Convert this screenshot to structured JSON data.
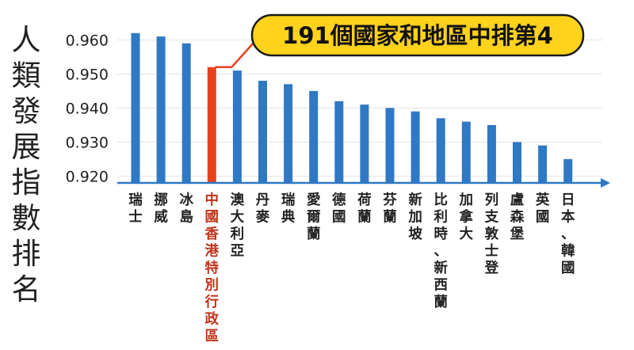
{
  "chart_data": {
    "type": "bar",
    "title": "",
    "ylabel": "人類發展指數排名",
    "xlabel": "",
    "ylim": [
      0.918,
      0.968
    ],
    "yticks": [
      "0.960",
      "0.950",
      "0.940",
      "0.930",
      "0.920"
    ],
    "ytick_values": [
      0.96,
      0.95,
      0.94,
      0.93,
      0.92
    ],
    "grid": true,
    "categories": [
      "瑞士",
      "挪威",
      "冰島",
      "中國香港特別行政區",
      "澳大利亞",
      "丹麥",
      "瑞典",
      "愛爾蘭",
      "德國",
      "荷蘭",
      "芬蘭",
      "新加坡",
      "比利時、新西蘭",
      "加拿大",
      "列支敦士登",
      "盧森堡",
      "英國",
      "日本、韓國"
    ],
    "values": [
      0.962,
      0.961,
      0.959,
      0.952,
      0.951,
      0.948,
      0.947,
      0.945,
      0.942,
      0.941,
      0.94,
      0.939,
      0.937,
      0.936,
      0.935,
      0.93,
      0.929,
      0.925
    ],
    "highlight_index": 3,
    "annotation": "191個國家和地區中排第4",
    "colors": {
      "bar": "#2f78c4",
      "highlight": "#e8401c",
      "highlight_text": "#c0331a",
      "callout_fill": "#ffd21c",
      "callout_border": "#1a1a1a",
      "axis": "#2f78c4",
      "grid": "#e2e2e2",
      "text": "#222222"
    }
  }
}
